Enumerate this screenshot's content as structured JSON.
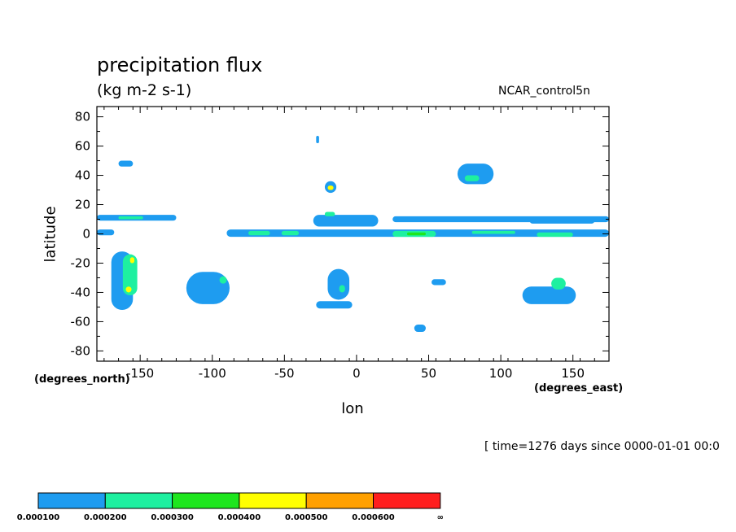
{
  "chart_data": {
    "type": "contour",
    "title": "precipitation flux",
    "units": "(kg m-2 s-1)",
    "dataset": "NCAR_control5n",
    "xlabel": "lon",
    "xunits": "(degrees_east)",
    "ylabel": "latitude",
    "yunits": "(degrees_north)",
    "timestamp": "[ time=1276 days since 0000-01-01 00:0",
    "xlim": [
      -180,
      175
    ],
    "ylim": [
      -87,
      87
    ],
    "xticks": [
      "-150",
      "-100",
      "-50",
      "0",
      "50",
      "100",
      "150"
    ],
    "yticks": [
      "80",
      "60",
      "40",
      "20",
      "0",
      "-20",
      "-40",
      "-60",
      "-80"
    ],
    "levels": [
      "0.000100",
      "0.000200",
      "0.000300",
      "0.000400",
      "0.000500",
      "0.000600",
      "∞"
    ],
    "level_colors": [
      "#1e9cf0",
      "#1ef0a0",
      "#1ee61e",
      "#ffff00",
      "#ffa000",
      "#ff1e1e"
    ],
    "regions": [
      {
        "lon": [
          -180,
          -125
        ],
        "lat": [
          9,
          13
        ],
        "level": 0
      },
      {
        "lon": [
          -165,
          -148
        ],
        "lat": [
          10,
          12
        ],
        "level": 1
      },
      {
        "lon": [
          -180,
          -168
        ],
        "lat": [
          -1,
          3
        ],
        "level": 0
      },
      {
        "lon": [
          -90,
          175
        ],
        "lat": [
          -2,
          3
        ],
        "level": 0
      },
      {
        "lon": [
          -75,
          -60
        ],
        "lat": [
          -1,
          2
        ],
        "level": 1
      },
      {
        "lon": [
          -52,
          -40
        ],
        "lat": [
          -1,
          2
        ],
        "level": 1
      },
      {
        "lon": [
          25,
          55
        ],
        "lat": [
          -2,
          2
        ],
        "level": 1
      },
      {
        "lon": [
          35,
          48
        ],
        "lat": [
          -1,
          1
        ],
        "level": 2
      },
      {
        "lon": [
          80,
          110
        ],
        "lat": [
          0,
          2
        ],
        "level": 1
      },
      {
        "lon": [
          125,
          150
        ],
        "lat": [
          -2,
          1
        ],
        "level": 1
      },
      {
        "lon": [
          -30,
          15
        ],
        "lat": [
          5,
          13
        ],
        "level": 0
      },
      {
        "lon": [
          -22,
          -15
        ],
        "lat": [
          12,
          15
        ],
        "level": 1
      },
      {
        "lon": [
          25,
          175
        ],
        "lat": [
          8,
          12
        ],
        "level": 0
      },
      {
        "lon": [
          120,
          165
        ],
        "lat": [
          7,
          11
        ],
        "level": 0
      },
      {
        "lon": [
          -22,
          -14
        ],
        "lat": [
          28,
          36
        ],
        "level": 0
      },
      {
        "lon": [
          -20,
          -16
        ],
        "lat": [
          30,
          33
        ],
        "level": 3
      },
      {
        "lon": [
          -165,
          -155
        ],
        "lat": [
          46,
          50
        ],
        "level": 0
      },
      {
        "lon": [
          70,
          95
        ],
        "lat": [
          34,
          48
        ],
        "level": 0
      },
      {
        "lon": [
          75,
          85
        ],
        "lat": [
          36,
          40
        ],
        "level": 1
      },
      {
        "lon": [
          -170,
          -155
        ],
        "lat": [
          -52,
          -12
        ],
        "level": 0
      },
      {
        "lon": [
          -162,
          -152
        ],
        "lat": [
          -42,
          -14
        ],
        "level": 1
      },
      {
        "lon": [
          -160,
          -156
        ],
        "lat": [
          -40,
          -36
        ],
        "level": 3
      },
      {
        "lon": [
          -157,
          -154
        ],
        "lat": [
          -20,
          -16
        ],
        "level": 3
      },
      {
        "lon": [
          -118,
          -88
        ],
        "lat": [
          -48,
          -26
        ],
        "level": 0
      },
      {
        "lon": [
          -95,
          -90
        ],
        "lat": [
          -34,
          -29
        ],
        "level": 1
      },
      {
        "lon": [
          -20,
          -5
        ],
        "lat": [
          -45,
          -24
        ],
        "level": 0
      },
      {
        "lon": [
          -12,
          -8
        ],
        "lat": [
          -40,
          -35
        ],
        "level": 1
      },
      {
        "lon": [
          -28,
          -3
        ],
        "lat": [
          -51,
          -46
        ],
        "level": 0
      },
      {
        "lon": [
          115,
          152
        ],
        "lat": [
          -48,
          -36
        ],
        "level": 0
      },
      {
        "lon": [
          135,
          145
        ],
        "lat": [
          -38,
          -30
        ],
        "level": 1
      },
      {
        "lon": [
          -28,
          -26
        ],
        "lat": [
          62,
          67
        ],
        "level": 0
      },
      {
        "lon": [
          40,
          48
        ],
        "lat": [
          -67,
          -62
        ],
        "level": 0
      },
      {
        "lon": [
          52,
          62
        ],
        "lat": [
          -35,
          -31
        ],
        "level": 0
      }
    ]
  }
}
